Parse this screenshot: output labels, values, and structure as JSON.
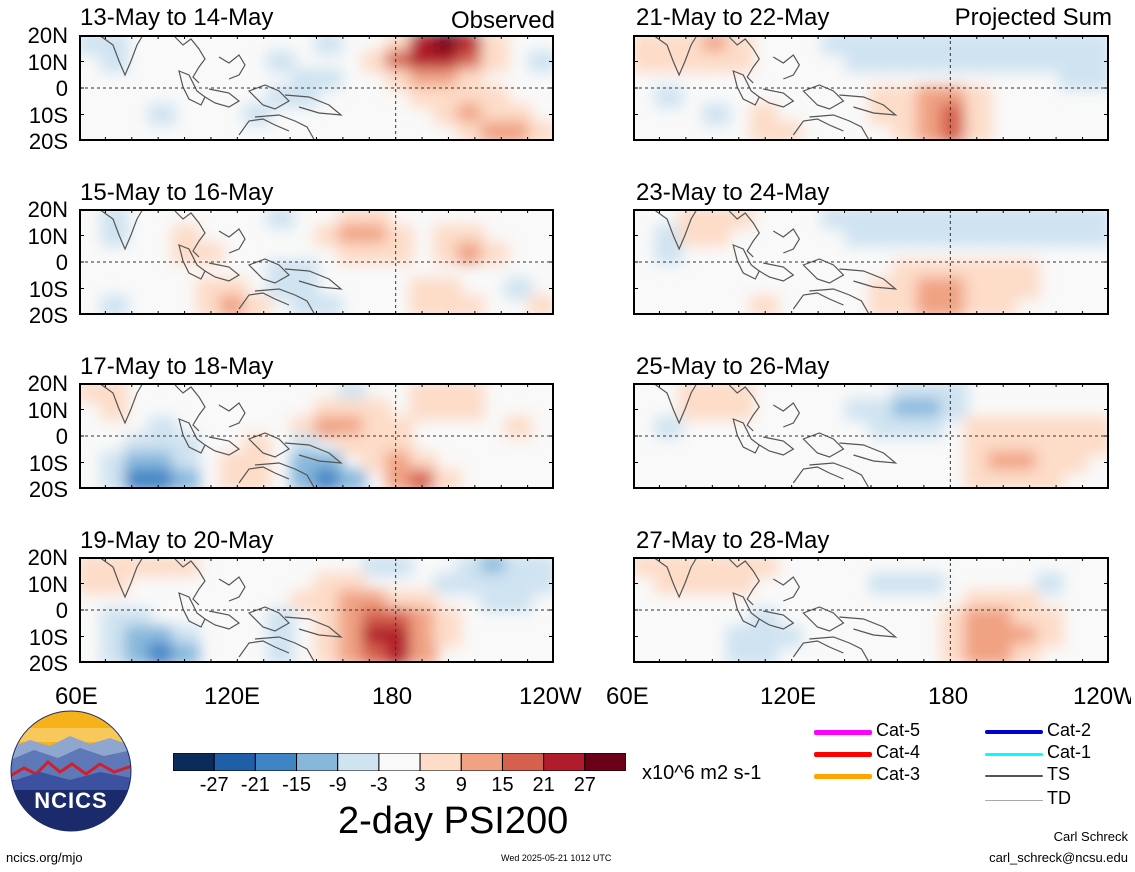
{
  "panels": [
    {
      "title": "13-May to 14-May",
      "tag": "Observed"
    },
    {
      "title": "15-May to 16-May",
      "tag": ""
    },
    {
      "title": "17-May to 18-May",
      "tag": ""
    },
    {
      "title": "19-May to 20-May",
      "tag": ""
    },
    {
      "title": "21-May to 22-May",
      "tag": "Projected Sum"
    },
    {
      "title": "23-May to 24-May",
      "tag": ""
    },
    {
      "title": "25-May to 26-May",
      "tag": ""
    },
    {
      "title": "27-May to 28-May",
      "tag": ""
    }
  ],
  "lat_labels": [
    "20N",
    "10N",
    "0",
    "10S",
    "20S"
  ],
  "lon_labels": [
    "60E",
    "120E",
    "180",
    "120W"
  ],
  "colorbar": {
    "labels": [
      "-27",
      "-21",
      "-15",
      "-9",
      "-3",
      "3",
      "9",
      "15",
      "21",
      "27"
    ],
    "colors": [
      "#0b2c5a",
      "#1f5fa8",
      "#3f84c4",
      "#87b8dc",
      "#cfe3f1",
      "#f9f9f9",
      "#fddcc8",
      "#f0a283",
      "#d5604d",
      "#b01c2c",
      "#6b0019"
    ],
    "units": "x10^6 m2 s-1",
    "title": "2-day PSI200"
  },
  "storm_legend": [
    {
      "label": "Cat-5",
      "color": "#ff00ff"
    },
    {
      "label": "Cat-4",
      "color": "#ff0000"
    },
    {
      "label": "Cat-3",
      "color": "#ffa500"
    },
    {
      "label": "Cat-2",
      "color": "#0000cd"
    },
    {
      "label": "Cat-1",
      "color": "#00ffff"
    },
    {
      "label": "TS",
      "color": "#555555"
    },
    {
      "label": "TD",
      "color": "#aaaaaa"
    }
  ],
  "logo": {
    "text": "NCICS"
  },
  "footer": {
    "website": "ncics.org/mjo",
    "timestamp": "Wed 2025-05-21 1012 UTC",
    "author": "Carl Schreck",
    "email": "carl_schreck@ncsu.edu"
  },
  "fields": [
    [
      [
        -1,
        -1,
        0,
        0,
        0,
        0,
        0,
        0,
        0,
        0,
        -1,
        0,
        0,
        1,
        4,
        5,
        4,
        1,
        0,
        0
      ],
      [
        0,
        -1,
        0,
        0,
        0,
        0,
        0,
        0,
        -1,
        0,
        0,
        0,
        1,
        3,
        4,
        4,
        3,
        1,
        0,
        -1
      ],
      [
        0,
        0,
        0,
        0,
        0,
        0,
        0,
        0,
        0,
        -1,
        -1,
        0,
        0,
        1,
        2,
        2,
        1,
        0,
        0,
        0
      ],
      [
        0,
        0,
        0,
        0,
        0,
        0,
        0,
        0,
        -1,
        -1,
        0,
        0,
        0,
        0,
        1,
        1,
        1,
        1,
        0,
        0
      ],
      [
        0,
        0,
        0,
        -1,
        0,
        0,
        0,
        -1,
        0,
        0,
        0,
        0,
        0,
        0,
        0,
        1,
        2,
        1,
        1,
        0
      ],
      [
        0,
        0,
        0,
        0,
        0,
        0,
        0,
        0,
        0,
        0,
        0,
        0,
        0,
        0,
        0,
        0,
        1,
        2,
        2,
        1
      ]
    ],
    [
      [
        0,
        -1,
        0,
        0,
        0,
        0,
        0,
        0,
        -1,
        0,
        0,
        1,
        1,
        0,
        0,
        0,
        0,
        0,
        0,
        0
      ],
      [
        0,
        -1,
        0,
        0,
        1,
        0,
        0,
        0,
        0,
        0,
        1,
        2,
        2,
        1,
        0,
        1,
        1,
        0,
        0,
        0
      ],
      [
        0,
        0,
        0,
        0,
        1,
        1,
        0,
        0,
        0,
        0,
        0,
        1,
        1,
        1,
        0,
        1,
        2,
        1,
        0,
        0
      ],
      [
        0,
        0,
        0,
        0,
        0,
        0,
        0,
        0,
        -1,
        -1,
        0,
        0,
        0,
        0,
        0,
        0,
        0,
        0,
        0,
        0
      ],
      [
        0,
        0,
        0,
        0,
        0,
        1,
        1,
        0,
        -1,
        -1,
        0,
        0,
        0,
        0,
        1,
        1,
        0,
        0,
        -1,
        0
      ],
      [
        0,
        -1,
        0,
        0,
        0,
        1,
        2,
        1,
        0,
        -1,
        -1,
        0,
        0,
        0,
        1,
        1,
        1,
        0,
        0,
        1
      ]
    ],
    [
      [
        1,
        1,
        0,
        0,
        0,
        0,
        0,
        0,
        0,
        0,
        0,
        -1,
        0,
        0,
        1,
        1,
        1,
        0,
        0,
        0
      ],
      [
        0,
        1,
        0,
        0,
        0,
        0,
        0,
        0,
        0,
        0,
        1,
        1,
        1,
        0,
        1,
        1,
        1,
        0,
        0,
        0
      ],
      [
        0,
        0,
        0,
        -1,
        0,
        0,
        0,
        0,
        0,
        1,
        2,
        2,
        1,
        1,
        0,
        0,
        0,
        0,
        1,
        0
      ],
      [
        0,
        0,
        -1,
        -1,
        -1,
        0,
        0,
        1,
        0,
        -1,
        0,
        1,
        1,
        1,
        0,
        0,
        0,
        0,
        0,
        0
      ],
      [
        0,
        -1,
        -2,
        -2,
        -1,
        0,
        1,
        1,
        0,
        -2,
        -2,
        0,
        1,
        2,
        1,
        0,
        0,
        0,
        0,
        0
      ],
      [
        0,
        -1,
        -3,
        -3,
        -2,
        0,
        1,
        1,
        0,
        -2,
        -3,
        -2,
        0,
        2,
        3,
        1,
        0,
        0,
        0,
        0
      ]
    ],
    [
      [
        1,
        1,
        1,
        1,
        1,
        0,
        0,
        0,
        0,
        0,
        0,
        0,
        -1,
        -1,
        0,
        0,
        -1,
        -2,
        -1,
        -1
      ],
      [
        1,
        1,
        0,
        0,
        0,
        0,
        0,
        0,
        0,
        0,
        1,
        1,
        0,
        0,
        0,
        -1,
        -1,
        -1,
        -1,
        -1
      ],
      [
        0,
        0,
        0,
        0,
        0,
        0,
        0,
        0,
        0,
        1,
        1,
        2,
        2,
        1,
        1,
        0,
        0,
        -1,
        -1,
        0
      ],
      [
        0,
        -1,
        -1,
        0,
        0,
        0,
        0,
        0,
        -1,
        0,
        1,
        2,
        3,
        3,
        2,
        1,
        0,
        0,
        0,
        0
      ],
      [
        0,
        -1,
        -2,
        -2,
        -1,
        0,
        0,
        0,
        -1,
        0,
        1,
        2,
        4,
        4,
        2,
        1,
        0,
        0,
        0,
        0
      ],
      [
        0,
        -1,
        -2,
        -3,
        -2,
        0,
        0,
        0,
        -1,
        0,
        1,
        2,
        3,
        4,
        2,
        0,
        0,
        0,
        0,
        0
      ]
    ],
    [
      [
        1,
        1,
        1,
        2,
        1,
        0,
        0,
        0,
        -1,
        -1,
        -1,
        -1,
        -1,
        -1,
        -1,
        -1,
        -1,
        -1,
        -1,
        -1
      ],
      [
        1,
        1,
        1,
        1,
        1,
        0,
        0,
        0,
        0,
        -1,
        -1,
        -1,
        -1,
        -1,
        -1,
        -1,
        -1,
        -1,
        -1,
        -1
      ],
      [
        0,
        0,
        0,
        0,
        0,
        0,
        0,
        0,
        0,
        0,
        0,
        0,
        0,
        0,
        0,
        0,
        0,
        0,
        -1,
        -1
      ],
      [
        0,
        -1,
        0,
        0,
        0,
        0,
        0,
        0,
        0,
        0,
        1,
        1,
        2,
        2,
        1,
        0,
        0,
        0,
        0,
        0
      ],
      [
        0,
        0,
        0,
        -1,
        0,
        1,
        0,
        0,
        0,
        0,
        1,
        1,
        2,
        3,
        1,
        0,
        0,
        0,
        0,
        0
      ],
      [
        0,
        0,
        0,
        0,
        0,
        1,
        1,
        0,
        0,
        0,
        0,
        1,
        2,
        3,
        1,
        0,
        0,
        0,
        0,
        0
      ]
    ],
    [
      [
        0,
        0,
        1,
        1,
        1,
        0,
        0,
        0,
        -1,
        -1,
        -1,
        -1,
        -1,
        -1,
        -1,
        -1,
        -1,
        -1,
        -1,
        -1
      ],
      [
        0,
        -1,
        1,
        1,
        0,
        0,
        0,
        0,
        0,
        -1,
        -1,
        -1,
        -1,
        -1,
        -1,
        -1,
        -1,
        -1,
        -1,
        -1
      ],
      [
        0,
        -1,
        0,
        0,
        0,
        0,
        0,
        0,
        0,
        0,
        0,
        0,
        0,
        0,
        0,
        0,
        0,
        0,
        0,
        0
      ],
      [
        0,
        0,
        0,
        0,
        0,
        0,
        0,
        0,
        0,
        0,
        0,
        1,
        1,
        1,
        1,
        1,
        1,
        0,
        0,
        0
      ],
      [
        0,
        0,
        0,
        0,
        0,
        0,
        0,
        0,
        0,
        0,
        1,
        1,
        2,
        2,
        1,
        1,
        1,
        0,
        0,
        0
      ],
      [
        0,
        0,
        0,
        0,
        0,
        1,
        0,
        0,
        0,
        0,
        1,
        1,
        2,
        2,
        1,
        1,
        0,
        0,
        0,
        0
      ]
    ],
    [
      [
        0,
        0,
        1,
        1,
        1,
        0,
        0,
        0,
        0,
        0,
        0,
        -1,
        -1,
        -1,
        0,
        0,
        0,
        0,
        0,
        0
      ],
      [
        0,
        0,
        1,
        1,
        1,
        0,
        0,
        0,
        0,
        -1,
        -1,
        -2,
        -2,
        -1,
        0,
        0,
        0,
        0,
        0,
        0
      ],
      [
        0,
        -1,
        0,
        0,
        0,
        0,
        0,
        0,
        0,
        0,
        -1,
        -1,
        -1,
        0,
        1,
        1,
        1,
        1,
        1,
        1
      ],
      [
        0,
        0,
        0,
        0,
        0,
        0,
        0,
        0,
        0,
        0,
        0,
        0,
        0,
        0,
        1,
        1,
        1,
        1,
        1,
        1
      ],
      [
        0,
        0,
        0,
        0,
        0,
        0,
        0,
        0,
        0,
        0,
        0,
        0,
        0,
        0,
        1,
        2,
        2,
        1,
        1,
        0
      ],
      [
        0,
        0,
        0,
        0,
        0,
        0,
        0,
        0,
        0,
        0,
        0,
        0,
        0,
        0,
        1,
        1,
        1,
        1,
        0,
        0
      ]
    ],
    [
      [
        1,
        1,
        1,
        1,
        1,
        1,
        0,
        0,
        0,
        0,
        0,
        0,
        0,
        0,
        0,
        0,
        0,
        0,
        0,
        0
      ],
      [
        0,
        1,
        1,
        1,
        1,
        0,
        0,
        0,
        0,
        0,
        -1,
        -1,
        -1,
        0,
        0,
        0,
        0,
        -1,
        0,
        0
      ],
      [
        0,
        0,
        0,
        0,
        0,
        0,
        0,
        0,
        0,
        0,
        0,
        0,
        0,
        0,
        1,
        1,
        1,
        0,
        0,
        0
      ],
      [
        0,
        0,
        0,
        0,
        0,
        -1,
        0,
        0,
        0,
        0,
        0,
        0,
        0,
        1,
        2,
        2,
        1,
        1,
        0,
        0
      ],
      [
        0,
        0,
        0,
        0,
        -1,
        -1,
        -1,
        0,
        0,
        0,
        0,
        0,
        0,
        1,
        2,
        2,
        2,
        1,
        0,
        0
      ],
      [
        0,
        0,
        0,
        0,
        -1,
        -1,
        0,
        0,
        0,
        0,
        0,
        0,
        0,
        1,
        2,
        2,
        1,
        0,
        0,
        0
      ]
    ]
  ]
}
